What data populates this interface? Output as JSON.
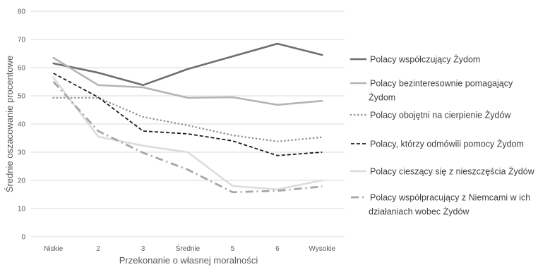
{
  "chart_data": {
    "type": "line",
    "title": "",
    "xlabel": "Przekonanie o własnej moralności",
    "ylabel": "Średnie oszacowanie procentowe",
    "ylim": [
      0,
      80
    ],
    "yticks": [
      0,
      10,
      20,
      30,
      40,
      50,
      60,
      70,
      80
    ],
    "grid": "horizontal",
    "legend_position": "right",
    "categories": [
      "Niskie",
      "2",
      "3",
      "Średnie",
      "5",
      "6",
      "Wysokie"
    ],
    "series": [
      {
        "name": "Polacy współczujący Żydom",
        "legend_lines": [
          "Polacy współczujący Żydom"
        ],
        "values": [
          61.5,
          58.2,
          53.8,
          59.5,
          64.0,
          68.5,
          64.5
        ],
        "color": "#6e6e6e",
        "style": "solid-thick"
      },
      {
        "name": "Polacy bezinteresownie pomagający Żydom",
        "legend_lines": [
          "Polacy bezinteresownie pomagający",
          "Żydom"
        ],
        "values": [
          63.5,
          53.8,
          53.0,
          49.3,
          49.5,
          46.8,
          48.2
        ],
        "color": "#b4b4b4",
        "style": "solid-thick"
      },
      {
        "name": "Polacy obojętni na cierpienie Żydów",
        "legend_lines": [
          "Polacy obojętni na  cierpienie Żydów"
        ],
        "values": [
          49.3,
          49.3,
          42.5,
          39.5,
          36.0,
          33.8,
          35.3
        ],
        "color": "#969696",
        "style": "dotted"
      },
      {
        "name": "Polacy, którzy odmówili pomocy Żydom",
        "legend_lines": [
          "Polacy, którzy odmówili pomocy Żydom"
        ],
        "values": [
          58.0,
          49.5,
          37.5,
          36.5,
          34.0,
          28.8,
          30.0
        ],
        "color": "#1a1a1a",
        "style": "dashed"
      },
      {
        "name": "Polacy cieszący się z nieszczęścia Żydów",
        "legend_lines": [
          "Polacy cieszący się z nieszczęścia Żydów"
        ],
        "values": [
          56.5,
          35.5,
          32.3,
          30.0,
          18.0,
          16.8,
          20.0
        ],
        "color": "#dcdcdc",
        "style": "solid-thick"
      },
      {
        "name": "Polacy współpracujący z Niemcami w ich działaniach wobec Żydów",
        "legend_lines": [
          "Polacy współpracujący z Niemcami w ich",
          "działaniach wobec Żydów"
        ],
        "values": [
          55.0,
          37.5,
          29.8,
          23.8,
          15.8,
          16.3,
          17.8
        ],
        "color": "#a6a6a6",
        "style": "dash-dot"
      }
    ]
  }
}
